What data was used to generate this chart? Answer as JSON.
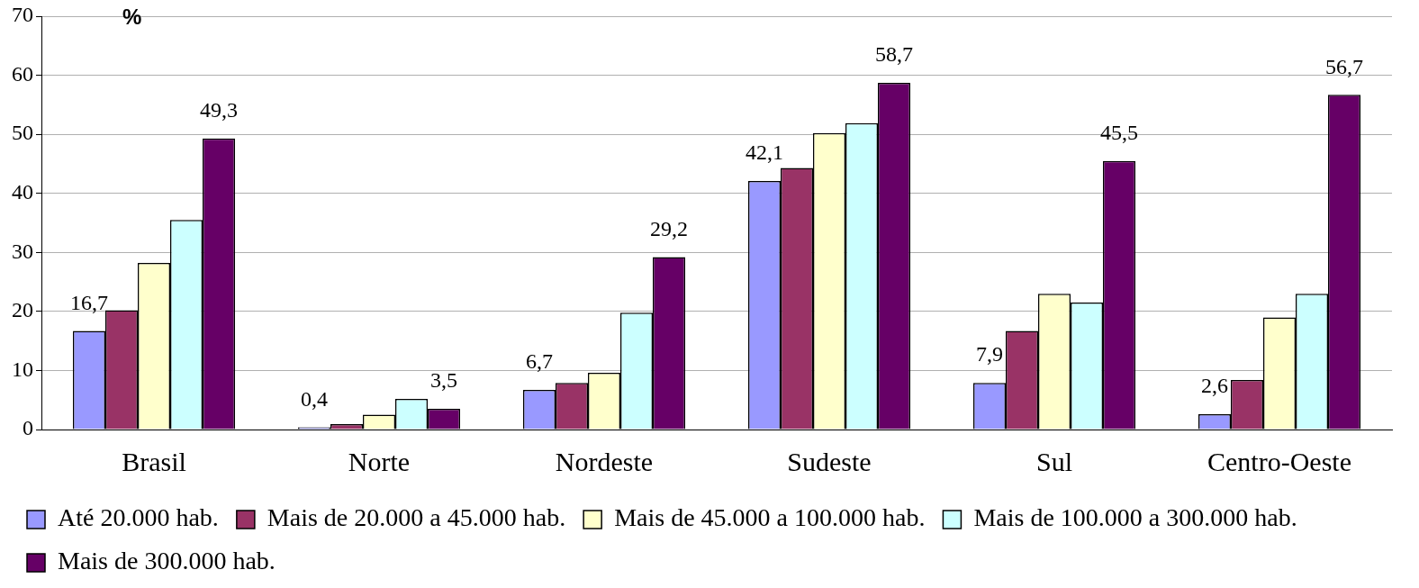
{
  "chart_data": {
    "type": "bar",
    "ylabel": "%",
    "categories": [
      "Brasil",
      "Norte",
      "Nordeste",
      "Sudeste",
      "Sul",
      "Centro-Oeste"
    ],
    "series": [
      {
        "name": "Até 20.000 hab.",
        "color": "#9999ff",
        "values": [
          16.7,
          0.4,
          6.7,
          42.1,
          7.9,
          2.6
        ],
        "value_labels": [
          "16,7",
          "0,4",
          "6,7",
          "42,1",
          "7,9",
          "2,6"
        ]
      },
      {
        "name": "Mais de 20.000 a 45.000 hab.",
        "color": "#993366",
        "values": [
          20.2,
          0.9,
          7.9,
          44.3,
          16.7,
          8.4
        ]
      },
      {
        "name": "Mais de 45.000 a 100.000 hab.",
        "color": "#ffffcc",
        "values": [
          28.2,
          2.5,
          9.6,
          50.2,
          23.0,
          19.0
        ]
      },
      {
        "name": "Mais de 100.000 a 300.000 hab.",
        "color": "#ccffff",
        "values": [
          35.5,
          5.2,
          19.8,
          51.9,
          21.5,
          23.0
        ]
      },
      {
        "name": "Mais de 300.000 hab.",
        "color": "#660066",
        "values": [
          49.3,
          3.5,
          29.2,
          58.7,
          45.5,
          56.7
        ],
        "value_labels": [
          "49,3",
          "3,5",
          "29,2",
          "58,7",
          "45,5",
          "56,7"
        ]
      }
    ],
    "ylim": [
      0,
      70
    ],
    "yticks": [
      0,
      10,
      20,
      30,
      40,
      50,
      60,
      70
    ],
    "grid": "y",
    "legend": "bottom"
  }
}
